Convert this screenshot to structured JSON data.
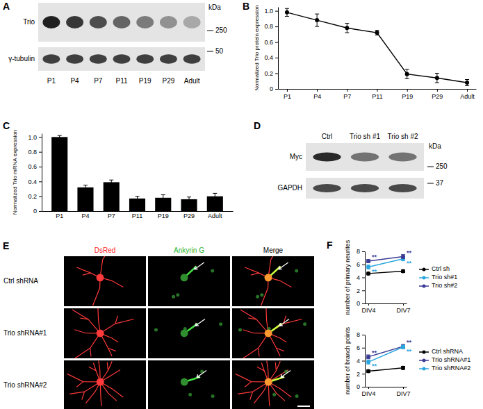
{
  "blots": [
    {
      "panel_label": "A",
      "rows": [
        "Trio",
        "γ-tubulin"
      ],
      "lanes": [
        "P1",
        "P4",
        "P7",
        "P11",
        "P19",
        "P29",
        "Adult"
      ],
      "unit": "kDa",
      "size_markers": [
        250,
        50
      ]
    },
    {
      "panel_label": "D",
      "rows": [
        "Myc",
        "GAPDH"
      ],
      "lanes": [
        "Ctrl",
        "Trio sh #1",
        "Trio sh #2"
      ],
      "unit": "kDa",
      "size_markers": [
        250,
        37
      ]
    }
  ],
  "micrographs": {
    "panel_label": "E",
    "columns": [
      {
        "text": "DsRed",
        "color": "#ff2020"
      },
      {
        "text": "Ankyrin G",
        "color": "#1fb31f"
      },
      {
        "text": "Merge",
        "color": "#000000"
      }
    ],
    "rows": [
      "Ctrl shRNA",
      "Trio shRNA#1",
      "Trio shRNA#2"
    ]
  },
  "chart_data": [
    {
      "type": "line",
      "panel_label": "B",
      "y_label": "Normalized Trio protein expression",
      "categories": [
        "P1",
        "P4",
        "P7",
        "P11",
        "P19",
        "P29",
        "Adult"
      ],
      "values": [
        0.98,
        0.88,
        0.78,
        0.72,
        0.19,
        0.14,
        0.08
      ],
      "errors": [
        0.05,
        0.08,
        0.06,
        0.03,
        0.06,
        0.06,
        0.04
      ],
      "color": "#000000",
      "marker": "circle",
      "ylim": [
        0,
        1.05
      ],
      "yticks": [
        0,
        0.2,
        0.4,
        0.6,
        0.8,
        {
          "value": 1,
          "label": "1.0"
        }
      ]
    },
    {
      "type": "bar",
      "panel_label": "C",
      "y_label": "Normalized Trio mRNA expression",
      "categories": [
        "P1",
        "P4",
        "P7",
        "P11",
        "P19",
        "P29",
        "Adult"
      ],
      "values": [
        1.0,
        0.32,
        0.39,
        0.17,
        0.18,
        0.16,
        0.2
      ],
      "errors": [
        0.02,
        0.03,
        0.03,
        0.03,
        0.04,
        0.03,
        0.04
      ],
      "color": "#000000",
      "ylim": [
        0,
        1.05
      ],
      "yticks": [
        0,
        0.2,
        0.4,
        0.6,
        0.8,
        {
          "value": 1,
          "label": "1.0"
        }
      ]
    },
    {
      "type": "line",
      "panel_label": "F",
      "y_label": "number of primary neurites",
      "categories": [
        "DIV4",
        "DIV7"
      ],
      "series": [
        {
          "name": "Ctrl sh",
          "color": "#000000",
          "values": [
            4.6,
            4.95
          ],
          "errors": [
            0.2,
            0.2
          ]
        },
        {
          "name": "Trio sh#1",
          "color": "#2aa6de",
          "values": [
            5.6,
            6.85
          ],
          "errors": [
            0.3,
            0.3
          ],
          "annotations": [
            "**",
            "**"
          ]
        },
        {
          "name": "Trio sh#2",
          "color": "#3a3b94",
          "values": [
            6.5,
            7.2
          ],
          "errors": [
            0.25,
            0.3
          ],
          "annotations": [
            "**",
            "**"
          ]
        }
      ],
      "marker": "circle",
      "legend": "right",
      "ylim": [
        0,
        8
      ],
      "yticks": [
        0,
        2,
        4,
        6,
        8
      ]
    },
    {
      "type": "line",
      "y_label": "number of branch points",
      "categories": [
        "DIV4",
        "DIV7"
      ],
      "series": [
        {
          "name": "Ctrl shRNA",
          "color": "#000000",
          "values": [
            2.4,
            2.9
          ],
          "errors": [
            0.2,
            0.25
          ]
        },
        {
          "name": "Trio shRNA#1",
          "color": "#3a3b94",
          "values": [
            4.6,
            6.2
          ],
          "errors": [
            0.3,
            0.3
          ],
          "annotations": [
            "**",
            "**"
          ]
        },
        {
          "name": "Trio shRNA#2",
          "color": "#2aa6de",
          "values": [
            3.8,
            6.1
          ],
          "errors": [
            0.3,
            0.25
          ],
          "annotations": [
            "**",
            "**"
          ]
        }
      ],
      "marker": "circle",
      "legend": "right",
      "ylim": [
        0,
        8
      ],
      "yticks": [
        0,
        2,
        4,
        6,
        8
      ]
    }
  ]
}
